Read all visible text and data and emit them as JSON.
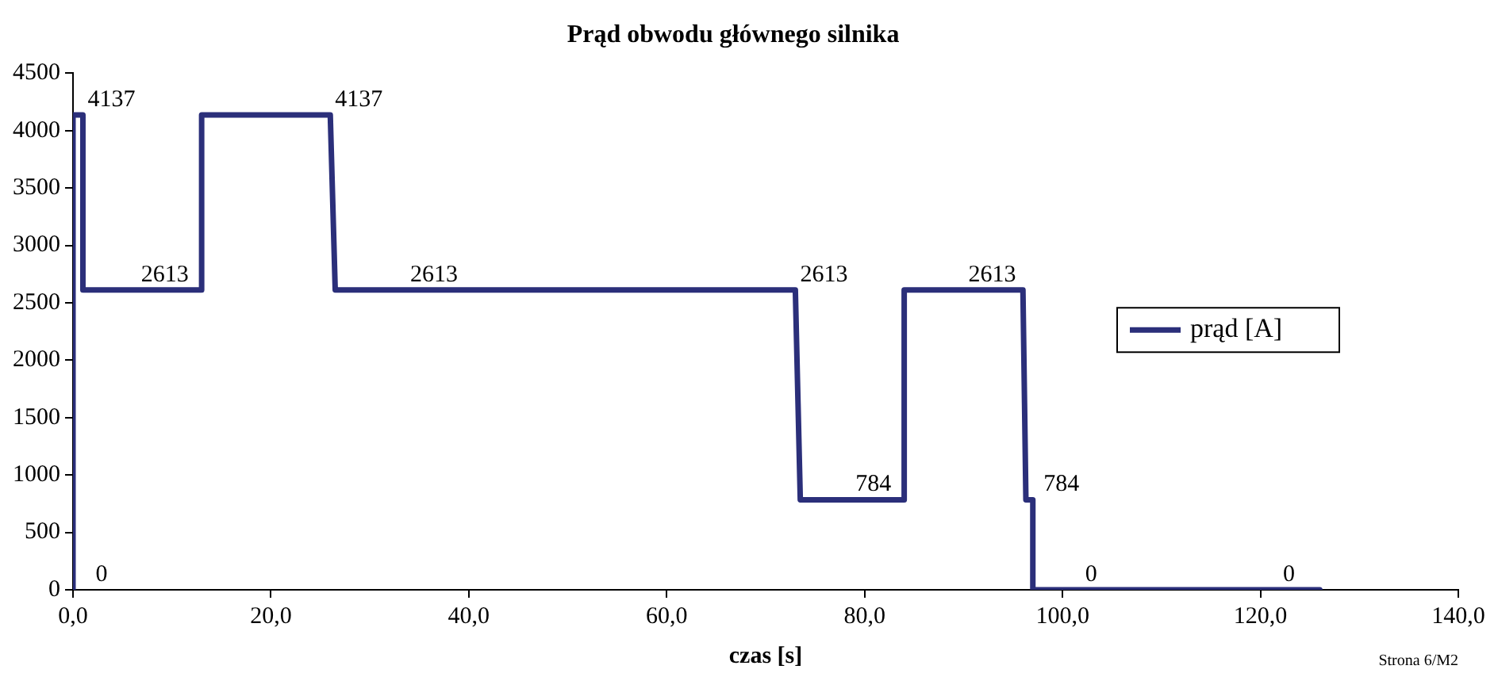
{
  "chart_data": {
    "type": "line",
    "title": "Prąd obwodu głównego silnika",
    "xlabel": "czas [s]",
    "series": [
      {
        "name": "prąd [A]",
        "color": "#2b2f7a",
        "x": [
          0,
          0,
          1,
          1,
          6.4,
          13,
          13,
          26,
          26.5,
          33.6,
          73,
          73.5,
          78,
          84,
          84,
          90,
          96,
          96.3,
          97,
          97,
          100,
          120,
          126
        ],
        "values": [
          0,
          4137,
          4137,
          2613,
          2613,
          2613,
          4137,
          4137,
          2613,
          2613,
          2613,
          784,
          784,
          784,
          2613,
          2613,
          2613,
          784,
          784,
          0,
          0,
          0,
          0
        ],
        "value_labels": [
          "0",
          null,
          "4137",
          null,
          "2613",
          null,
          null,
          "4137",
          null,
          "2613",
          "2613",
          null,
          "784",
          null,
          null,
          "2613",
          null,
          null,
          "784",
          null,
          "0",
          "0",
          null
        ]
      }
    ],
    "xlim": [
      0,
      140
    ],
    "xticks": [
      {
        "value": 0,
        "label": "0,0"
      },
      {
        "value": 20,
        "label": "20,0"
      },
      {
        "value": 40,
        "label": "40,0"
      },
      {
        "value": 60,
        "label": "60,0"
      },
      {
        "value": 80,
        "label": "80,0"
      },
      {
        "value": 100,
        "label": "100,0"
      },
      {
        "value": 120,
        "label": "120,0"
      },
      {
        "value": 140,
        "label": "140,0"
      }
    ],
    "ylim": [
      0,
      4500
    ],
    "yticks": [
      0,
      500,
      1000,
      1500,
      2000,
      2500,
      3000,
      3500,
      4000,
      4500
    ],
    "grid": false,
    "legend": "right",
    "marker": "none",
    "line_style": "solid",
    "annotations": [
      "Strona 6/M2"
    ]
  }
}
